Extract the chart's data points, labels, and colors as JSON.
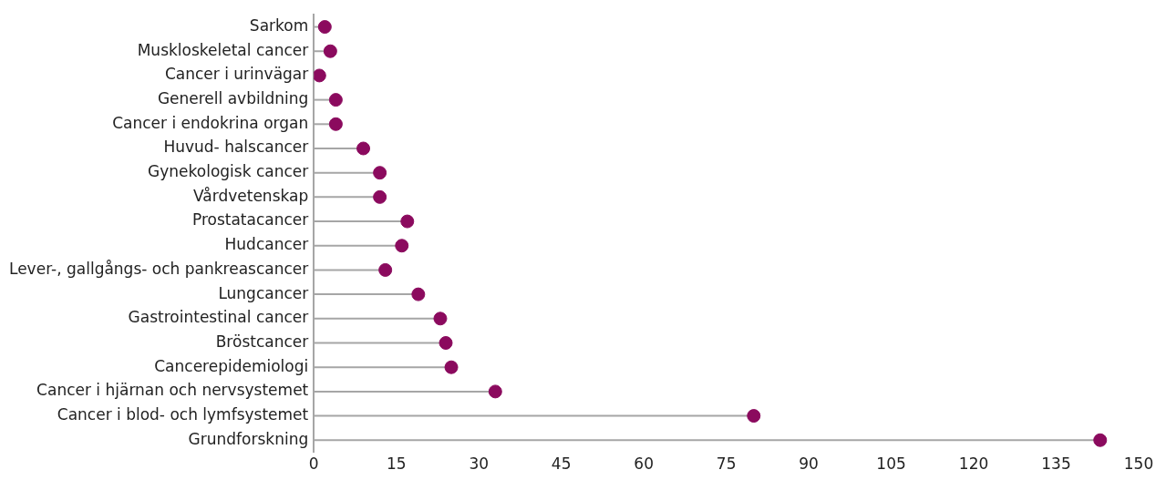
{
  "chart_data": {
    "type": "lollipop",
    "orientation": "horizontal",
    "marker": "circle",
    "color": "#8b0a5e",
    "grid": false,
    "legend": false,
    "categories": [
      "Sarkom",
      "Muskloskeletal cancer",
      "Cancer i urinvägar",
      "Generell avbildning",
      "Cancer i endokrina organ",
      "Huvud- halscancer",
      "Gynekologisk cancer",
      "Vårdvetenskap",
      "Prostatacancer",
      "Hudcancer",
      "Lever-, gallgångs- och pankreascancer",
      "Lungcancer",
      "Gastrointestinal cancer",
      "Bröstcancer",
      "Cancerepidemiologi",
      "Cancer i hjärnan och nervsystemet",
      "Cancer i blod- och lymfsystemet",
      "Grundforskning"
    ],
    "values": [
      2,
      3,
      1,
      4,
      4,
      9,
      12,
      12,
      17,
      16,
      13,
      19,
      23,
      24,
      25,
      33,
      80,
      143
    ],
    "xlim": [
      0,
      150
    ],
    "xticks": [
      0,
      15,
      30,
      45,
      60,
      75,
      90,
      105,
      120,
      135,
      150
    ]
  }
}
